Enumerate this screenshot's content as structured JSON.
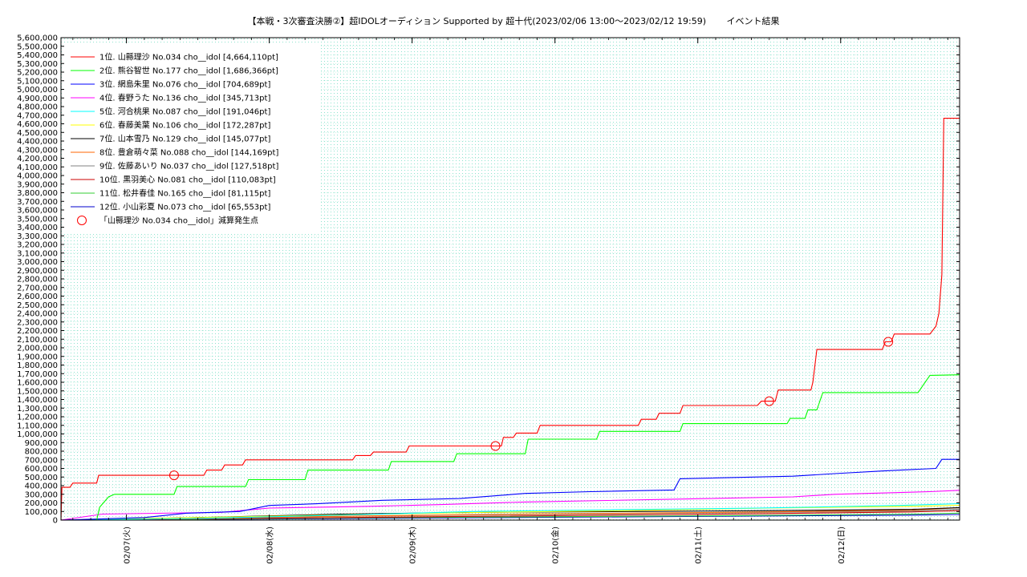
{
  "chart_data": {
    "type": "line",
    "title": "【本戦・3次審査決勝②】超IDOLオーディション Supported by 超十代(2023/02/06 13:00～2023/02/12 19:59)　　 イベント結果",
    "xlabel": "",
    "ylabel": "",
    "x_range": [
      "2023-02-06 13:00",
      "2023-02-12 19:59"
    ],
    "ylim": [
      0,
      5600000
    ],
    "y_tick_step": 100000,
    "x_ticks": [
      {
        "label": "02/07(火)",
        "x": "2023-02-07 00:00"
      },
      {
        "label": "02/08(水)",
        "x": "2023-02-08 00:00"
      },
      {
        "label": "02/09(木)",
        "x": "2023-02-09 00:00"
      },
      {
        "label": "02/10(金)",
        "x": "2023-02-10 00:00"
      },
      {
        "label": "02/11(土)",
        "x": "2023-02-11 00:00"
      },
      {
        "label": "02/12(日)",
        "x": "2023-02-12 00:00"
      }
    ],
    "grid": true,
    "legend_position": "top-left",
    "series": [
      {
        "name": "1位. 山縣理沙 No.034 cho__idol [4,664,110pt]",
        "color": "#ff0000",
        "points": [
          [
            "2023-02-06 13:00",
            0
          ],
          [
            "2023-02-06 13:10",
            380000
          ],
          [
            "2023-02-06 14:30",
            380000
          ],
          [
            "2023-02-06 15:00",
            430000
          ],
          [
            "2023-02-06 19:00",
            430000
          ],
          [
            "2023-02-06 19:20",
            520000
          ],
          [
            "2023-02-07 13:00",
            520000
          ],
          [
            "2023-02-07 13:30",
            580000
          ],
          [
            "2023-02-07 16:00",
            580000
          ],
          [
            "2023-02-07 16:30",
            640000
          ],
          [
            "2023-02-07 19:30",
            640000
          ],
          [
            "2023-02-07 20:00",
            700000
          ],
          [
            "2023-02-08 14:00",
            700000
          ],
          [
            "2023-02-08 14:30",
            750000
          ],
          [
            "2023-02-08 17:00",
            750000
          ],
          [
            "2023-02-08 17:30",
            790000
          ],
          [
            "2023-02-08 23:00",
            790000
          ],
          [
            "2023-02-08 23:30",
            860000
          ],
          [
            "2023-02-09 15:00",
            860000
          ],
          [
            "2023-02-09 15:20",
            960000
          ],
          [
            "2023-02-09 17:00",
            960000
          ],
          [
            "2023-02-09 17:30",
            1010000
          ],
          [
            "2023-02-09 21:00",
            1010000
          ],
          [
            "2023-02-09 21:30",
            1100000
          ],
          [
            "2023-02-10 14:00",
            1100000
          ],
          [
            "2023-02-10 14:30",
            1170000
          ],
          [
            "2023-02-10 17:00",
            1170000
          ],
          [
            "2023-02-10 17:30",
            1240000
          ],
          [
            "2023-02-10 21:00",
            1240000
          ],
          [
            "2023-02-10 21:30",
            1330000
          ],
          [
            "2023-02-11 10:00",
            1330000
          ],
          [
            "2023-02-11 10:40",
            1380000
          ],
          [
            "2023-02-11 13:00",
            1380000
          ],
          [
            "2023-02-11 13:30",
            1510000
          ],
          [
            "2023-02-11 19:00",
            1510000
          ],
          [
            "2023-02-11 19:20",
            1600000
          ],
          [
            "2023-02-11 20:00",
            1980000
          ],
          [
            "2023-02-12 07:00",
            1980000
          ],
          [
            "2023-02-12 07:30",
            2070000
          ],
          [
            "2023-02-12 08:30",
            2070000
          ],
          [
            "2023-02-12 09:00",
            2160000
          ],
          [
            "2023-02-12 15:00",
            2160000
          ],
          [
            "2023-02-12 16:00",
            2250000
          ],
          [
            "2023-02-12 16:30",
            2400000
          ],
          [
            "2023-02-12 17:00",
            2850000
          ],
          [
            "2023-02-12 17:20",
            4664110
          ],
          [
            "2023-02-12 19:59",
            4664110
          ]
        ]
      },
      {
        "name": "2位. 熊谷智世 No.177 cho__idol [1,686,366pt]",
        "color": "#00ff00",
        "points": [
          [
            "2023-02-06 13:00",
            0
          ],
          [
            "2023-02-06 19:00",
            0
          ],
          [
            "2023-02-06 19:30",
            150000
          ],
          [
            "2023-02-06 21:00",
            270000
          ],
          [
            "2023-02-06 22:00",
            300000
          ],
          [
            "2023-02-07 08:00",
            300000
          ],
          [
            "2023-02-07 08:30",
            390000
          ],
          [
            "2023-02-07 20:00",
            390000
          ],
          [
            "2023-02-07 20:30",
            470000
          ],
          [
            "2023-02-08 06:00",
            470000
          ],
          [
            "2023-02-08 06:30",
            580000
          ],
          [
            "2023-02-08 20:00",
            580000
          ],
          [
            "2023-02-08 20:30",
            680000
          ],
          [
            "2023-02-09 07:00",
            680000
          ],
          [
            "2023-02-09 07:30",
            770000
          ],
          [
            "2023-02-09 19:00",
            770000
          ],
          [
            "2023-02-09 19:30",
            940000
          ],
          [
            "2023-02-10 07:00",
            940000
          ],
          [
            "2023-02-10 07:30",
            1030000
          ],
          [
            "2023-02-10 21:00",
            1030000
          ],
          [
            "2023-02-10 21:30",
            1120000
          ],
          [
            "2023-02-11 15:00",
            1120000
          ],
          [
            "2023-02-11 15:30",
            1180000
          ],
          [
            "2023-02-11 18:00",
            1180000
          ],
          [
            "2023-02-11 18:30",
            1280000
          ],
          [
            "2023-02-11 20:00",
            1280000
          ],
          [
            "2023-02-11 21:00",
            1480000
          ],
          [
            "2023-02-12 13:00",
            1480000
          ],
          [
            "2023-02-12 14:00",
            1580000
          ],
          [
            "2023-02-12 15:00",
            1680000
          ],
          [
            "2023-02-12 19:59",
            1686366
          ]
        ]
      },
      {
        "name": "3位. 網島朱里 No.076 cho__idol [704,689pt]",
        "color": "#0000ff",
        "points": [
          [
            "2023-02-06 13:00",
            0
          ],
          [
            "2023-02-07 03:00",
            30000
          ],
          [
            "2023-02-07 10:00",
            80000
          ],
          [
            "2023-02-07 19:00",
            100000
          ],
          [
            "2023-02-08 00:00",
            170000
          ],
          [
            "2023-02-08 08:00",
            190000
          ],
          [
            "2023-02-08 19:00",
            230000
          ],
          [
            "2023-02-09 08:00",
            250000
          ],
          [
            "2023-02-09 19:00",
            310000
          ],
          [
            "2023-02-10 06:00",
            330000
          ],
          [
            "2023-02-10 20:00",
            350000
          ],
          [
            "2023-02-10 21:00",
            480000
          ],
          [
            "2023-02-11 16:00",
            510000
          ],
          [
            "2023-02-11 23:00",
            540000
          ],
          [
            "2023-02-12 07:00",
            570000
          ],
          [
            "2023-02-12 16:00",
            600000
          ],
          [
            "2023-02-12 17:00",
            704689
          ],
          [
            "2023-02-12 19:59",
            704689
          ]
        ]
      },
      {
        "name": "4位. 春野うた No.136 cho__idol [345,713pt]",
        "color": "#ff00ff",
        "points": [
          [
            "2023-02-06 13:00",
            0
          ],
          [
            "2023-02-06 20:00",
            70000
          ],
          [
            "2023-02-07 16:00",
            90000
          ],
          [
            "2023-02-08 00:00",
            140000
          ],
          [
            "2023-02-08 17:00",
            160000
          ],
          [
            "2023-02-09 05:00",
            180000
          ],
          [
            "2023-02-09 19:00",
            210000
          ],
          [
            "2023-02-10 18:00",
            240000
          ],
          [
            "2023-02-11 16:00",
            270000
          ],
          [
            "2023-02-11 23:00",
            300000
          ],
          [
            "2023-02-12 15:00",
            330000
          ],
          [
            "2023-02-12 19:59",
            345713
          ]
        ]
      },
      {
        "name": "5位. 河合桃果 No.087 cho__idol [191,046pt]",
        "color": "#00ffff",
        "points": [
          [
            "2023-02-06 13:00",
            0
          ],
          [
            "2023-02-07 12:00",
            20000
          ],
          [
            "2023-02-08 14:00",
            60000
          ],
          [
            "2023-02-09 10:00",
            100000
          ],
          [
            "2023-02-10 10:00",
            120000
          ],
          [
            "2023-02-11 10:00",
            140000
          ],
          [
            "2023-02-12 10:00",
            170000
          ],
          [
            "2023-02-12 19:59",
            191046
          ]
        ]
      },
      {
        "name": "6位. 春藤美葉 No.106 cho__idol [172,287pt]",
        "color": "#ffff00",
        "points": [
          [
            "2023-02-06 13:00",
            0
          ],
          [
            "2023-02-07 12:00",
            30000
          ],
          [
            "2023-02-08 12:00",
            60000
          ],
          [
            "2023-02-09 12:00",
            90000
          ],
          [
            "2023-02-10 12:00",
            110000
          ],
          [
            "2023-02-11 12:00",
            140000
          ],
          [
            "2023-02-12 12:00",
            160000
          ],
          [
            "2023-02-12 19:59",
            172287
          ]
        ]
      },
      {
        "name": "7位. 山本雪乃 No.129 cho__idol [145,077pt]",
        "color": "#000000",
        "points": [
          [
            "2023-02-06 13:00",
            0
          ],
          [
            "2023-02-07 12:00",
            30000
          ],
          [
            "2023-02-08 12:00",
            70000
          ],
          [
            "2023-02-09 12:00",
            90000
          ],
          [
            "2023-02-10 12:00",
            100000
          ],
          [
            "2023-02-11 12:00",
            110000
          ],
          [
            "2023-02-12 12:00",
            125000
          ],
          [
            "2023-02-12 19:59",
            145077
          ]
        ]
      },
      {
        "name": "8位. 豊倉萌々菜 No.088 cho__idol [144,169pt]",
        "color": "#ff6600",
        "points": [
          [
            "2023-02-06 13:00",
            0
          ],
          [
            "2023-02-07 12:00",
            25000
          ],
          [
            "2023-02-08 12:00",
            45000
          ],
          [
            "2023-02-09 12:00",
            65000
          ],
          [
            "2023-02-10 12:00",
            80000
          ],
          [
            "2023-02-11 12:00",
            95000
          ],
          [
            "2023-02-12 12:00",
            115000
          ],
          [
            "2023-02-12 19:59",
            144169
          ]
        ]
      },
      {
        "name": "9位. 佐藤あいり No.037 cho__idol [127,518pt]",
        "color": "#808080",
        "points": [
          [
            "2023-02-06 13:00",
            0
          ],
          [
            "2023-02-07 12:00",
            20000
          ],
          [
            "2023-02-08 12:00",
            45000
          ],
          [
            "2023-02-09 12:00",
            60000
          ],
          [
            "2023-02-10 12:00",
            75000
          ],
          [
            "2023-02-11 12:00",
            90000
          ],
          [
            "2023-02-12 12:00",
            105000
          ],
          [
            "2023-02-12 19:59",
            127518
          ]
        ]
      },
      {
        "name": "10位. 黒羽美心 No.081 cho__idol [110,083pt]",
        "color": "#cc0000",
        "points": [
          [
            "2023-02-06 13:00",
            0
          ],
          [
            "2023-02-07 12:00",
            15000
          ],
          [
            "2023-02-08 12:00",
            30000
          ],
          [
            "2023-02-09 12:00",
            45000
          ],
          [
            "2023-02-10 12:00",
            60000
          ],
          [
            "2023-02-11 12:00",
            75000
          ],
          [
            "2023-02-12 12:00",
            95000
          ],
          [
            "2023-02-12 19:59",
            110083
          ]
        ]
      },
      {
        "name": "11位. 松井春佳 No.165 cho__idol [81,115pt]",
        "color": "#33cc33",
        "points": [
          [
            "2023-02-06 13:00",
            0
          ],
          [
            "2023-02-07 12:00",
            10000
          ],
          [
            "2023-02-08 12:00",
            25000
          ],
          [
            "2023-02-09 12:00",
            35000
          ],
          [
            "2023-02-10 12:00",
            45000
          ],
          [
            "2023-02-11 12:00",
            55000
          ],
          [
            "2023-02-12 12:00",
            70000
          ],
          [
            "2023-02-12 19:59",
            81115
          ]
        ]
      },
      {
        "name": "12位. 小山彩夏 No.073 cho__idol [65,553pt]",
        "color": "#0000cc",
        "points": [
          [
            "2023-02-06 13:00",
            0
          ],
          [
            "2023-02-07 12:00",
            8000
          ],
          [
            "2023-02-08 12:00",
            18000
          ],
          [
            "2023-02-09 12:00",
            28000
          ],
          [
            "2023-02-10 12:00",
            38000
          ],
          [
            "2023-02-11 12:00",
            48000
          ],
          [
            "2023-02-12 12:00",
            58000
          ],
          [
            "2023-02-12 19:59",
            65553
          ]
        ]
      }
    ],
    "marker_series": {
      "name": "「山縣理沙 No.034 cho__idol」減算発生点",
      "color": "#ff0000",
      "points": [
        [
          "2023-02-07 08:00",
          520000
        ],
        [
          "2023-02-09 14:00",
          860000
        ],
        [
          "2023-02-11 12:00",
          1380000
        ],
        [
          "2023-02-12 08:00",
          2070000
        ]
      ]
    }
  }
}
